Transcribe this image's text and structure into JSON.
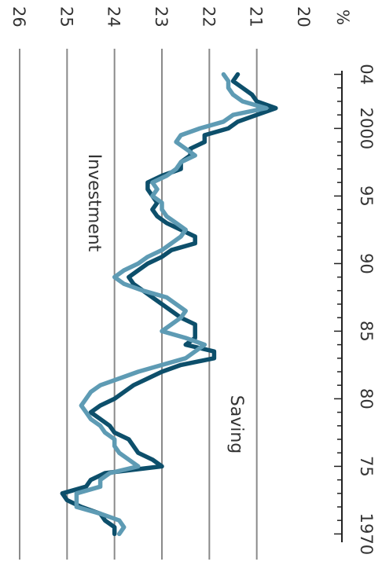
{
  "chart_data": {
    "type": "line",
    "orientation": "rotated-90-clockwise",
    "title": "",
    "xlabel": "",
    "ylabel": "",
    "y_unit": "%",
    "ylim": [
      20,
      26
    ],
    "xlim": [
      1969.5,
      2004.5
    ],
    "grid": true,
    "y_ticks": [
      {
        "value": 26,
        "label": "26"
      },
      {
        "value": 25,
        "label": "25"
      },
      {
        "value": 24,
        "label": "24"
      },
      {
        "value": 23,
        "label": "23"
      },
      {
        "value": 22,
        "label": "22"
      },
      {
        "value": 21,
        "label": "21"
      },
      {
        "value": 20,
        "label": "20"
      }
    ],
    "x_ticks": [
      {
        "value": 1970,
        "label": "1970"
      },
      {
        "value": 1975,
        "label": "75"
      },
      {
        "value": 1980,
        "label": "80"
      },
      {
        "value": 1985,
        "label": "85"
      },
      {
        "value": 1990,
        "label": "90"
      },
      {
        "value": 1995,
        "label": "95"
      },
      {
        "value": 2000,
        "label": "2000"
      },
      {
        "value": 2004,
        "label": "04"
      }
    ],
    "series": [
      {
        "name": "Saving",
        "color": "#0d4f6b",
        "x": [
          1970,
          1970.5,
          1971,
          1971.5,
          1972,
          1972.5,
          1973,
          1973.5,
          1974,
          1974.5,
          1975,
          1975.5,
          1976,
          1976.5,
          1977,
          1977.5,
          1978,
          1978.5,
          1979,
          1979.5,
          1980,
          1980.5,
          1981,
          1981.5,
          1982,
          1982.5,
          1983,
          1983.5,
          1984,
          1984.5,
          1985,
          1985.5,
          1986,
          1986.5,
          1987,
          1987.5,
          1988,
          1988.5,
          1989,
          1989.5,
          1990,
          1990.5,
          1991,
          1991.5,
          1992,
          1992.5,
          1993,
          1993.5,
          1994,
          1994.5,
          1995,
          1995.5,
          1996,
          1996.5,
          1997,
          1997.5,
          1998,
          1998.5,
          1999,
          1999.5,
          2000,
          2000.5,
          2001,
          2001.5,
          2002,
          2002.5,
          2003,
          2003.5,
          2004
        ],
        "values": [
          24.0,
          24.0,
          24.2,
          24.3,
          24.7,
          25.0,
          25.1,
          24.6,
          24.5,
          24.2,
          23.0,
          23.2,
          23.5,
          23.6,
          23.7,
          24.0,
          24.1,
          24.3,
          24.5,
          24.3,
          24.0,
          23.8,
          23.6,
          23.3,
          23.0,
          22.6,
          21.9,
          21.9,
          22.5,
          22.3,
          22.3,
          22.3,
          22.6,
          22.8,
          23.0,
          23.2,
          23.4,
          23.6,
          23.7,
          23.5,
          23.3,
          23.0,
          22.8,
          22.3,
          22.3,
          22.6,
          22.9,
          23.1,
          23.2,
          23.1,
          23.2,
          23.3,
          23.3,
          23.0,
          22.6,
          22.6,
          22.4,
          22.4,
          22.1,
          22.1,
          21.6,
          21.4,
          21.0,
          20.6,
          21.0,
          21.1,
          21.3,
          21.5,
          21.4
        ]
      },
      {
        "name": "Investment",
        "color": "#5e9bb4",
        "x": [
          1970,
          1970.5,
          1971,
          1971.5,
          1972,
          1972.5,
          1973,
          1973.5,
          1974,
          1974.5,
          1975,
          1975.5,
          1976,
          1976.5,
          1977,
          1977.5,
          1978,
          1978.5,
          1979,
          1979.5,
          1980,
          1980.5,
          1981,
          1981.5,
          1982,
          1982.5,
          1983,
          1983.5,
          1984,
          1984.5,
          1985,
          1985.5,
          1986,
          1986.5,
          1987,
          1987.5,
          1988,
          1988.5,
          1989,
          1989.5,
          1990,
          1990.5,
          1991,
          1991.5,
          1992,
          1992.5,
          1993,
          1993.5,
          1994,
          1994.5,
          1995,
          1995.5,
          1996,
          1996.5,
          1997,
          1997.5,
          1998,
          1998.5,
          1999,
          1999.5,
          2000,
          2000.5,
          2001,
          2001.5,
          2002,
          2002.5,
          2003,
          2003.5,
          2004
        ],
        "values": [
          23.9,
          23.8,
          23.9,
          24.3,
          24.8,
          24.8,
          24.8,
          24.3,
          24.3,
          24.1,
          23.5,
          23.7,
          23.9,
          24.0,
          24.0,
          24.2,
          24.3,
          24.5,
          24.6,
          24.7,
          24.6,
          24.5,
          24.3,
          23.9,
          23.5,
          23.0,
          22.5,
          22.3,
          22.1,
          22.5,
          23.0,
          22.8,
          22.6,
          22.5,
          22.7,
          22.9,
          23.4,
          23.8,
          24.0,
          23.8,
          23.5,
          23.3,
          23.0,
          22.8,
          22.6,
          22.5,
          22.7,
          22.9,
          23.0,
          23.0,
          23.2,
          23.1,
          23.2,
          22.9,
          22.7,
          22.6,
          22.3,
          22.5,
          22.7,
          22.6,
          22.2,
          21.7,
          21.5,
          20.8,
          21.3,
          21.5,
          21.6,
          21.6,
          21.7
        ]
      }
    ],
    "annotations": [
      {
        "text": "Investment",
        "series": "Investment",
        "at_x": 1990.5,
        "at_y": 24.2
      },
      {
        "text": "Saving",
        "series": "Saving",
        "at_x": 1979,
        "at_y": 21.5
      }
    ]
  }
}
